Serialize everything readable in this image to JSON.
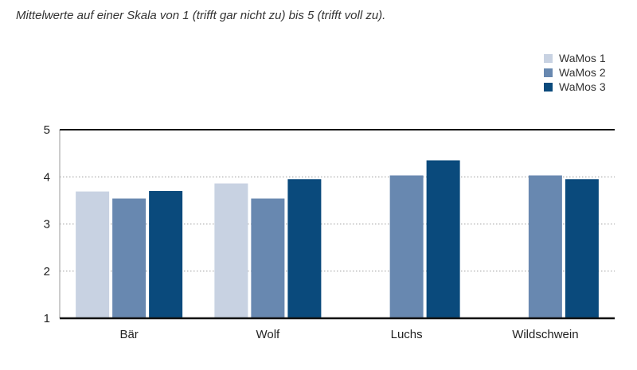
{
  "chart_data": {
    "type": "bar",
    "subtitle": "Mittelwerte auf einer Skala von 1 (trifft gar nicht zu) bis 5 (trifft voll zu).",
    "categories": [
      "Bär",
      "Wolf",
      "Luchs",
      "Wildschwein"
    ],
    "series": [
      {
        "name": "WaMos 1",
        "color": "#c8d2e2",
        "values": [
          3.69,
          3.86,
          null,
          null
        ]
      },
      {
        "name": "WaMos 2",
        "color": "#6888b0",
        "values": [
          3.54,
          3.54,
          4.03,
          4.03
        ]
      },
      {
        "name": "WaMos 3",
        "color": "#0a4a7c",
        "values": [
          3.7,
          3.95,
          4.35,
          3.95
        ]
      }
    ],
    "ylim": [
      1,
      5
    ],
    "yticks": [
      "1",
      "2",
      "3",
      "4",
      "5"
    ],
    "grid": true,
    "legend_position": "top-right"
  }
}
